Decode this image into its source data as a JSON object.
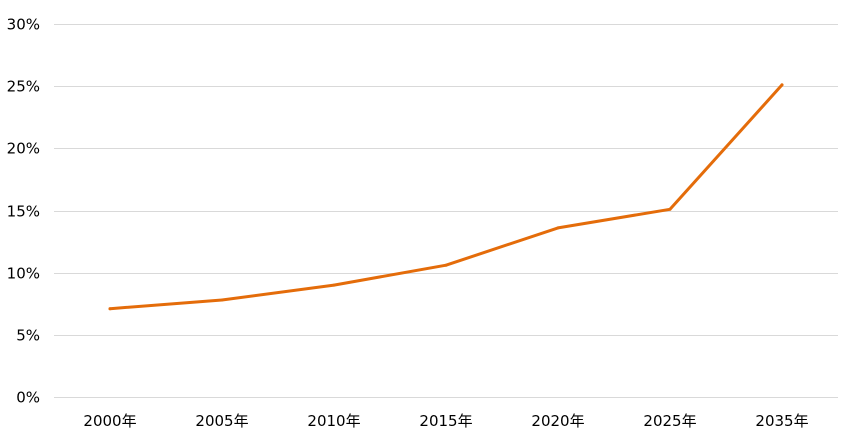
{
  "chart_data": {
    "type": "line",
    "categories": [
      "2000年",
      "2005年",
      "2010年",
      "2015年",
      "2020年",
      "2025年",
      "2035年"
    ],
    "series": [
      {
        "values": [
          7.1,
          7.8,
          9.0,
          10.6,
          13.6,
          15.1,
          25.1
        ],
        "color": "#e46c0a"
      }
    ],
    "ylim": [
      0,
      30
    ],
    "yticks": [
      0,
      5,
      10,
      15,
      20,
      25,
      30
    ],
    "ytick_labels": [
      "0%",
      "5%",
      "10%",
      "15%",
      "20%",
      "25%",
      "30%"
    ],
    "grid": true,
    "gridline_color": "#d9d9d9",
    "legend": "none"
  }
}
